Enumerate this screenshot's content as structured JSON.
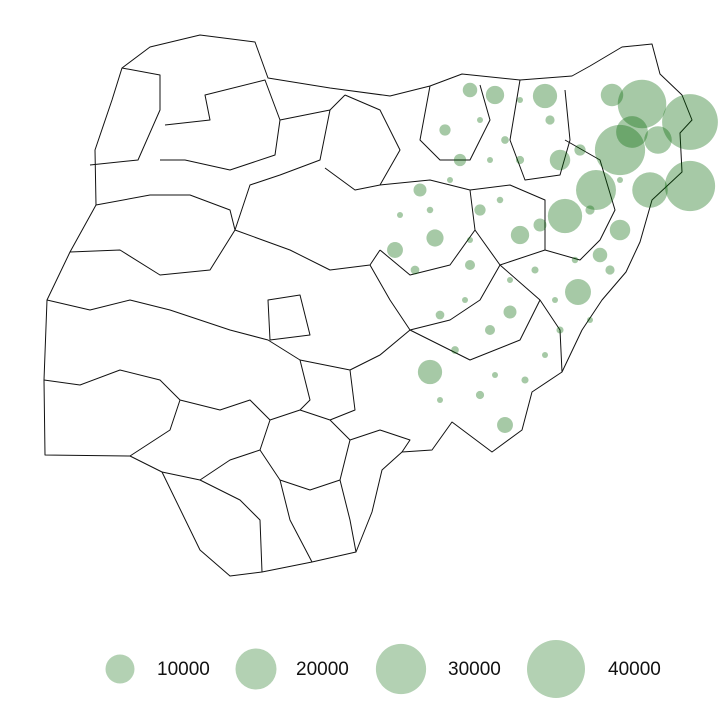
{
  "chart_data": {
    "type": "bubble-map",
    "color": "#006400",
    "legend_color": "#b3d1b3",
    "bubbles": {
      "values": [
        37000,
        30000,
        30000,
        28000,
        19000,
        15000,
        14000,
        12000,
        9000,
        8000,
        7000,
        7000,
        6000,
        5000,
        5000,
        4000,
        4000,
        3500,
        3000,
        3000,
        2500,
        2500,
        2000,
        2000,
        2000,
        1800,
        1500,
        1500,
        1500,
        1200,
        1200,
        1000,
        1000,
        1000,
        900,
        900,
        800,
        800,
        700,
        700,
        600,
        600,
        600,
        500,
        500,
        500,
        400,
        400,
        400,
        400,
        300,
        300,
        300,
        300,
        300,
        200,
        200,
        200,
        200,
        200
      ]
    },
    "legend": {
      "values": [
        10000,
        20000,
        30000,
        40000
      ]
    }
  }
}
